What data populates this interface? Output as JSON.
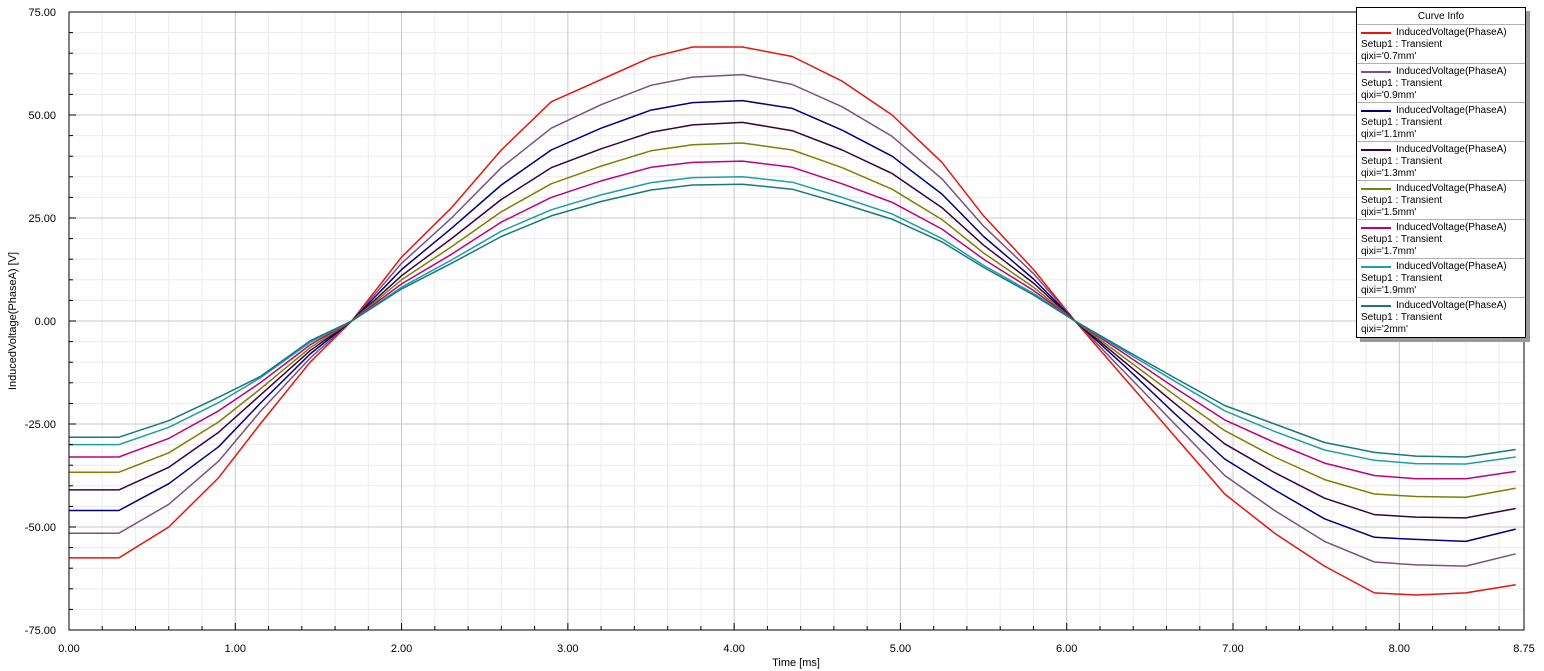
{
  "chart_data": {
    "type": "line",
    "xlabel": "Time [ms]",
    "ylabel": "InducedVoltage(PhaseA) [V]",
    "xlim": [
      0,
      8.75
    ],
    "ylim": [
      -75,
      75
    ],
    "x_ticks": [
      "0.00",
      "1.00",
      "2.00",
      "3.00",
      "4.00",
      "5.00",
      "6.00",
      "7.00",
      "8.00",
      "8.75"
    ],
    "y_ticks": [
      "75.00",
      "50.00",
      "25.00",
      "0.00",
      "-25.00",
      "-50.00",
      "-75.00"
    ],
    "grid": true,
    "legend_position": "top-right",
    "legend_title": "Curve Info",
    "x": [
      0,
      0.3,
      0.6,
      0.9,
      1.15,
      1.45,
      1.7,
      2.0,
      2.3,
      2.6,
      2.9,
      3.2,
      3.5,
      3.75,
      4.05,
      4.35,
      4.65,
      4.95,
      5.25,
      5.5,
      5.8,
      6.05,
      6.35,
      6.65,
      6.95,
      7.25,
      7.55,
      7.85,
      8.1,
      8.4,
      8.7
    ],
    "series": [
      {
        "name": "InducedVoltage(PhaseA)",
        "setup": "Setup1 : Transient",
        "param": "qixi='0.7mm'",
        "color": "#e8140e",
        "values": [
          -57.5,
          -57.5,
          -50,
          -38,
          -25,
          -10,
          0,
          15.5,
          27.5,
          41.5,
          53.2,
          58.6,
          64.0,
          66.5,
          66.5,
          64.2,
          58.2,
          50.0,
          38.5,
          25.5,
          12.5,
          0,
          -14.0,
          -28.0,
          -42.0,
          -51.5,
          -59.5,
          -66.0,
          -66.5,
          -66.0,
          -64.0
        ]
      },
      {
        "name": "InducedVoltage(PhaseA)",
        "setup": "Setup1 : Transient",
        "param": "qixi='0.9mm'",
        "color": "#7f4f7f",
        "values": [
          -51.5,
          -51.5,
          -44.5,
          -34.0,
          -22.0,
          -9.0,
          0,
          14.0,
          25.0,
          37.2,
          46.8,
          52.5,
          57.2,
          59.2,
          59.8,
          57.4,
          52.0,
          44.8,
          34.5,
          23.0,
          11.5,
          0,
          -12.5,
          -25.0,
          -37.5,
          -46.0,
          -53.5,
          -58.5,
          -59.2,
          -59.5,
          -56.5
        ]
      },
      {
        "name": "InducedVoltage(PhaseA)",
        "setup": "Setup1 : Transient",
        "param": "qixi='1.1mm'",
        "color": "#000080",
        "values": [
          -46.0,
          -46.0,
          -39.5,
          -30.5,
          -20.0,
          -8.0,
          0,
          12.5,
          22.5,
          33.0,
          41.5,
          46.8,
          51.2,
          53.0,
          53.5,
          51.6,
          46.3,
          40.0,
          30.8,
          20.5,
          10.2,
          0,
          -11.0,
          -22.5,
          -33.5,
          -41.0,
          -48.0,
          -52.5,
          -53.0,
          -53.5,
          -50.5
        ]
      },
      {
        "name": "InducedVoltage(PhaseA)",
        "setup": "Setup1 : Transient",
        "param": "qixi='1.3mm'",
        "color": "#3c0040",
        "values": [
          -41.0,
          -41.0,
          -35.5,
          -27.0,
          -18.0,
          -7.2,
          0,
          11.0,
          20.0,
          29.5,
          37.2,
          41.8,
          45.8,
          47.6,
          48.2,
          46.2,
          41.5,
          35.8,
          27.5,
          18.4,
          9.2,
          0,
          -10.0,
          -20.0,
          -29.8,
          -36.8,
          -43.0,
          -47.0,
          -47.6,
          -47.8,
          -45.5
        ]
      },
      {
        "name": "InducedVoltage(PhaseA)",
        "setup": "Setup1 : Transient",
        "param": "qixi='1.5mm'",
        "color": "#808000",
        "values": [
          -36.7,
          -36.7,
          -32.0,
          -24.5,
          -16.5,
          -6.5,
          0,
          10.0,
          18.0,
          26.5,
          33.3,
          37.6,
          41.3,
          42.8,
          43.2,
          41.5,
          37.2,
          32.0,
          24.6,
          16.5,
          8.2,
          0,
          -9.0,
          -18.0,
          -26.6,
          -33.0,
          -38.5,
          -42.0,
          -42.6,
          -42.8,
          -40.6
        ]
      },
      {
        "name": "InducedVoltage(PhaseA)",
        "setup": "Setup1 : Transient",
        "param": "qixi='1.7mm'",
        "color": "#c0007f",
        "values": [
          -33.0,
          -33.0,
          -28.5,
          -21.8,
          -15.0,
          -5.8,
          0,
          9.0,
          16.2,
          24.0,
          30.0,
          34.0,
          37.3,
          38.5,
          38.8,
          37.3,
          33.3,
          28.8,
          22.3,
          15.0,
          7.4,
          0,
          -8.0,
          -16.2,
          -24.0,
          -29.5,
          -34.5,
          -37.5,
          -38.3,
          -38.3,
          -36.5
        ]
      },
      {
        "name": "InducedVoltage(PhaseA)",
        "setup": "Setup1 : Transient",
        "param": "qixi='1.9mm'",
        "color": "#1e9ea8",
        "values": [
          -30.0,
          -30.0,
          -25.8,
          -19.8,
          -13.8,
          -5.2,
          0,
          8.2,
          14.8,
          21.8,
          27.0,
          30.6,
          33.6,
          34.8,
          35.0,
          33.7,
          30.0,
          26.0,
          20.0,
          13.5,
          6.7,
          0,
          -7.4,
          -14.6,
          -21.8,
          -26.8,
          -31.3,
          -33.8,
          -34.6,
          -34.7,
          -33.0
        ]
      },
      {
        "name": "InducedVoltage(PhaseA)",
        "setup": "Setup1 : Transient",
        "param": "qixi='2mm'",
        "color": "#177a7a",
        "values": [
          -28.2,
          -28.2,
          -24.2,
          -18.5,
          -13.5,
          -4.8,
          0,
          7.8,
          14.0,
          20.5,
          25.5,
          29.0,
          31.8,
          33.0,
          33.2,
          32.0,
          28.5,
          24.7,
          19.2,
          13.0,
          6.3,
          0,
          -7.0,
          -13.8,
          -20.5,
          -25.0,
          -29.5,
          -31.9,
          -32.8,
          -33.0,
          -31.2
        ]
      }
    ]
  }
}
